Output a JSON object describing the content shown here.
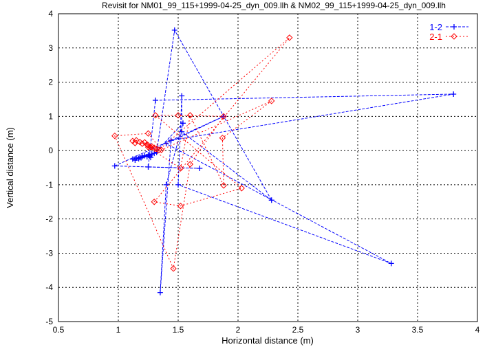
{
  "chart_data": {
    "type": "line",
    "title": "Revisit for NM01_99_115+1999-04-25_dyn_009.llh & NM02_99_115+1999-04-25_dyn_009.llh",
    "xlabel": "Horizontal distance (m)",
    "ylabel": "Vertical distance (m)",
    "xlim": [
      0.5,
      4
    ],
    "ylim": [
      -5,
      4
    ],
    "xticks": [
      "0.5",
      "1",
      "1.5",
      "2",
      "2.5",
      "3",
      "3.5",
      "4"
    ],
    "yticks": [
      "-5",
      "-4",
      "-3",
      "-2",
      "-1",
      "0",
      "1",
      "2",
      "3",
      "4"
    ],
    "grid": true,
    "legend_position": "top-right",
    "series": [
      {
        "name": "1-2",
        "color": "#0000ff",
        "marker": "plus",
        "points": [
          [
            1.12,
            -0.25
          ],
          [
            1.15,
            -0.22
          ],
          [
            1.18,
            -0.2
          ],
          [
            1.14,
            -0.28
          ],
          [
            1.2,
            -0.18
          ],
          [
            1.22,
            -0.15
          ],
          [
            1.17,
            -0.24
          ],
          [
            1.25,
            -0.12
          ],
          [
            1.28,
            -0.1
          ],
          [
            1.24,
            -0.18
          ],
          [
            1.3,
            -0.08
          ],
          [
            1.19,
            -0.21
          ],
          [
            1.26,
            -0.16
          ],
          [
            1.32,
            -0.05
          ],
          [
            1.47,
            3.52
          ],
          [
            2.28,
            -1.45
          ],
          [
            1.53,
            0.55
          ],
          [
            1.53,
            1.6
          ],
          [
            1.5,
            -1.0
          ],
          [
            3.28,
            -3.3
          ],
          [
            1.4,
            0.2
          ],
          [
            1.88,
            1.0
          ],
          [
            0.97,
            -0.45
          ],
          [
            1.68,
            -0.52
          ],
          [
            1.25,
            -0.48
          ],
          [
            1.31,
            1.47
          ],
          [
            3.8,
            1.65
          ],
          [
            1.44,
            0.3
          ],
          [
            1.35,
            -4.15
          ],
          [
            1.4,
            -1.0
          ],
          [
            1.54,
            0.8
          ],
          [
            1.27,
            -0.2
          ]
        ]
      },
      {
        "name": "2-1",
        "color": "#ff0000",
        "marker": "diamond",
        "points": [
          [
            1.12,
            0.28
          ],
          [
            1.15,
            0.3
          ],
          [
            1.18,
            0.25
          ],
          [
            1.14,
            0.22
          ],
          [
            1.2,
            0.2
          ],
          [
            1.22,
            0.24
          ],
          [
            1.25,
            0.15
          ],
          [
            1.28,
            0.12
          ],
          [
            1.24,
            0.18
          ],
          [
            1.3,
            0.08
          ],
          [
            1.27,
            0.1
          ],
          [
            1.32,
            0.05
          ],
          [
            1.34,
            0.02
          ],
          [
            2.43,
            3.3
          ],
          [
            1.3,
            -1.5
          ],
          [
            1.52,
            -1.62
          ],
          [
            2.03,
            -1.1
          ],
          [
            1.31,
            1.03
          ],
          [
            1.5,
            1.03
          ],
          [
            1.88,
            1.0
          ],
          [
            1.6,
            -0.4
          ],
          [
            1.46,
            -3.45
          ],
          [
            0.97,
            0.43
          ],
          [
            1.25,
            0.5
          ],
          [
            1.36,
            0.02
          ],
          [
            2.28,
            1.45
          ],
          [
            1.87,
            0.37
          ],
          [
            1.88,
            -1.02
          ],
          [
            1.6,
            1.03
          ],
          [
            1.52,
            -0.52
          ],
          [
            1.25,
            0.1
          ]
        ]
      }
    ]
  }
}
